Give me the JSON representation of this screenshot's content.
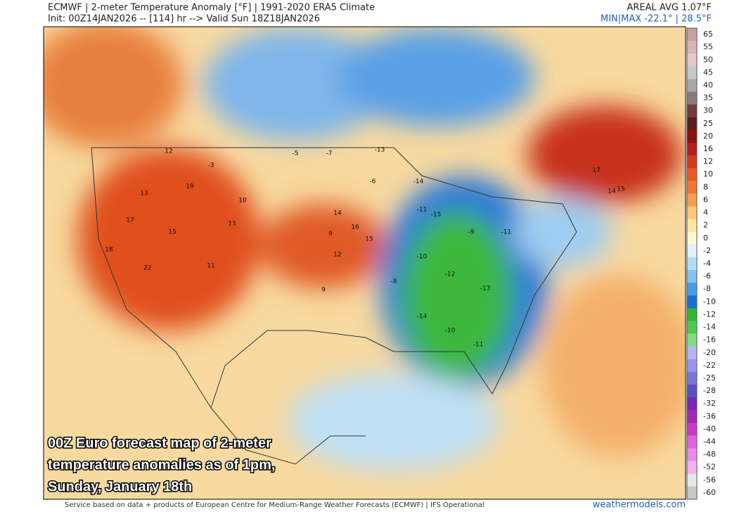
{
  "header": {
    "title": "ECMWF | 2-meter Temperature Anomaly [°F] | 1991-2020 ERA5 Climate",
    "init": "Init: 00Z14JAN2026 -- [114] hr --> Valid Sun 18Z18JAN2026",
    "areal_avg": "AREAL AVG 1.07°F",
    "min_max": "MIN|MAX -22.1° | 28.5°F"
  },
  "colorbar": {
    "labels": [
      65,
      55,
      50,
      45,
      40,
      35,
      30,
      25,
      20,
      16,
      12,
      10,
      8,
      6,
      4,
      2,
      0,
      -2,
      -4,
      -6,
      -8,
      -10,
      -12,
      -14,
      -16,
      -20,
      -22,
      -25,
      -28,
      -32,
      -36,
      -40,
      -44,
      -48,
      -52,
      -56,
      -60
    ],
    "colors": [
      "#c8a0a0",
      "#d9b4b4",
      "#e6c8c8",
      "#c8c8c8",
      "#a8a8a8",
      "#8c7878",
      "#703c3c",
      "#5a1e1e",
      "#8b1010",
      "#b41e1e",
      "#d23c1e",
      "#e65a28",
      "#f07832",
      "#f5a050",
      "#fac878",
      "#fde6a0",
      "#fff5d2",
      "#e1f0fa",
      "#b4dcf5",
      "#82c3f0",
      "#4b9be6",
      "#1e6ed2",
      "#32b432",
      "#50c850",
      "#82dc82",
      "#b4b4f0",
      "#9696e6",
      "#7878d2",
      "#5a50be",
      "#7828b4",
      "#a028b4",
      "#c83cc8",
      "#dc64dc",
      "#e68ce6",
      "#f0b4f0",
      "#e6e6e6",
      "#c8c8c8"
    ]
  },
  "map": {
    "labels": [
      12,
      13,
      17,
      18,
      22,
      15,
      19,
      11,
      10,
      13,
      14,
      16,
      15,
      12,
      9,
      -5,
      -7,
      -13,
      -14,
      -11,
      -15,
      -10,
      -12,
      -9,
      -13,
      -11,
      -14,
      -10,
      -8,
      -11,
      17,
      14,
      15,
      9,
      -6,
      -3
    ]
  },
  "caption": {
    "lines": [
      "00Z Euro forecast map of 2-meter",
      "temperature anomalies as of 1pm,",
      "Sunday, January 18th"
    ]
  },
  "footer": {
    "credit": "Service based on data + products of European Centre for Medium-Range Weather Forecasts (ECMWF) | IFS Operational",
    "site": "weathermodels.com"
  }
}
